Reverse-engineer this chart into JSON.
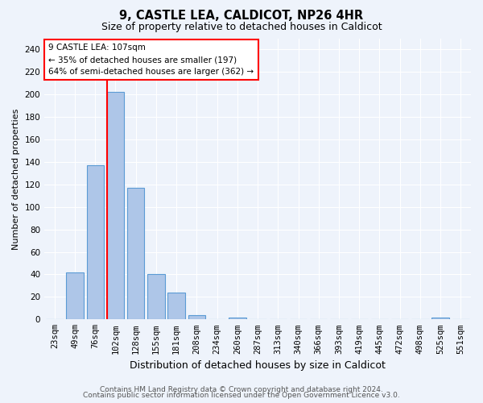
{
  "title1": "9, CASTLE LEA, CALDICOT, NP26 4HR",
  "title2": "Size of property relative to detached houses in Caldicot",
  "xlabel": "Distribution of detached houses by size in Caldicot",
  "ylabel": "Number of detached properties",
  "categories": [
    "23sqm",
    "49sqm",
    "76sqm",
    "102sqm",
    "128sqm",
    "155sqm",
    "181sqm",
    "208sqm",
    "234sqm",
    "260sqm",
    "287sqm",
    "313sqm",
    "340sqm",
    "366sqm",
    "393sqm",
    "419sqm",
    "445sqm",
    "472sqm",
    "498sqm",
    "525sqm",
    "551sqm"
  ],
  "values": [
    0,
    42,
    137,
    202,
    117,
    40,
    24,
    4,
    0,
    2,
    0,
    0,
    0,
    0,
    0,
    0,
    0,
    0,
    0,
    2,
    0
  ],
  "bar_color": "#aec6e8",
  "bar_edge_color": "#5b9bd5",
  "red_line_index": 3,
  "annotation_text": "9 CASTLE LEA: 107sqm\n← 35% of detached houses are smaller (197)\n64% of semi-detached houses are larger (362) →",
  "annotation_box_color": "white",
  "annotation_box_edge": "red",
  "vline_color": "red",
  "ylim": [
    0,
    250
  ],
  "yticks": [
    0,
    20,
    40,
    60,
    80,
    100,
    120,
    140,
    160,
    180,
    200,
    220,
    240
  ],
  "footer1": "Contains HM Land Registry data © Crown copyright and database right 2024.",
  "footer2": "Contains public sector information licensed under the Open Government Licence v3.0.",
  "background_color": "#eef3fb",
  "grid_color": "white",
  "title1_fontsize": 10.5,
  "title2_fontsize": 9,
  "xlabel_fontsize": 9,
  "ylabel_fontsize": 8,
  "tick_fontsize": 7.5,
  "footer_fontsize": 6.5,
  "annotation_fontsize": 7.5
}
